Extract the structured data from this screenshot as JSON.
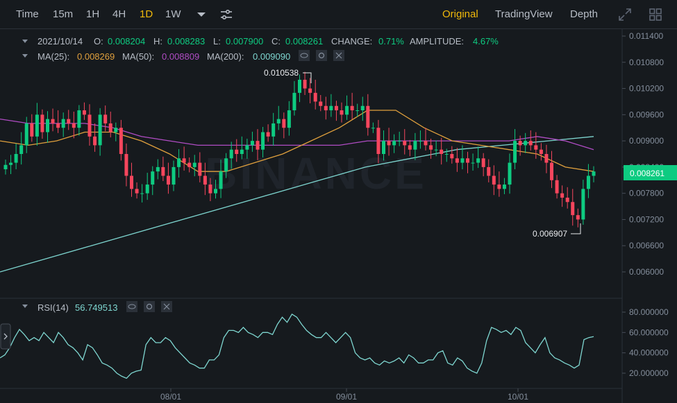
{
  "toolbar": {
    "intervals": [
      "Time",
      "15m",
      "1H",
      "4H",
      "1D",
      "1W"
    ],
    "active_interval": "1D",
    "views": [
      "Original",
      "TradingView",
      "Depth"
    ],
    "active_view": "Original",
    "more_icon": "caret-down-icon",
    "settings_icon": "sliders-icon",
    "fullscreen_icon": "expand-icon",
    "layout_icon": "grid-icon"
  },
  "info": {
    "date": "2021/10/14",
    "open_label": "O:",
    "open": "0.008204",
    "high_label": "H:",
    "high": "0.008283",
    "low_label": "L:",
    "low": "0.007900",
    "close_label": "C:",
    "close": "0.008261",
    "change_label": "CHANGE:",
    "change": "0.71%",
    "amplitude_label": "AMPLITUDE:",
    "amplitude": "4.67%"
  },
  "ma": {
    "ma25_label": "MA(25):",
    "ma25": "0.008269",
    "ma50_label": "MA(50):",
    "ma50": "0.008809",
    "ma200_label": "MA(200):",
    "ma200": "0.009090"
  },
  "rsi": {
    "label": "RSI(14)",
    "value": "56.749513"
  },
  "watermark": "BINANCE",
  "colors": {
    "up": "#0ecb81",
    "down": "#f6465d",
    "ma25": "#e0a03d",
    "ma50": "#b04cc4",
    "ma200": "#7ed6d0",
    "rsi": "#7ed6d0",
    "accent": "#f0b90b",
    "background": "#161a1e"
  },
  "chart_data": [
    {
      "type": "candlestick",
      "title": "",
      "yticks": [
        "0.011400",
        "0.010800",
        "0.010200",
        "0.009600",
        "0.009000",
        "0.008400",
        "0.007800",
        "0.007200",
        "0.006600",
        "0.006000"
      ],
      "ylim": [
        0.0055,
        0.0116
      ],
      "x_labels": [
        "08/01",
        "09/01",
        "10/01"
      ],
      "last_price": "0.008261",
      "high_annotation": "0.010538",
      "low_annotation": "0.006907",
      "series": [
        {
          "name": "Price",
          "closes": [
            0.00845,
            0.0085,
            0.0087,
            0.0089,
            0.0094,
            0.0091,
            0.0096,
            0.0092,
            0.0095,
            0.0094,
            0.0093,
            0.0095,
            0.0094,
            0.0093,
            0.0097,
            0.0096,
            0.0091,
            0.0089,
            0.0096,
            0.0094,
            0.0092,
            0.0093,
            0.0087,
            0.0082,
            0.0079,
            0.0078,
            0.0078,
            0.008,
            0.0083,
            0.0084,
            0.0082,
            0.008,
            0.0084,
            0.0086,
            0.0085,
            0.0084,
            0.0085,
            0.0082,
            0.008,
            0.0078,
            0.0079,
            0.0083,
            0.0086,
            0.0088,
            0.0087,
            0.0088,
            0.0089,
            0.009,
            0.0088,
            0.0092,
            0.0091,
            0.0094,
            0.0095,
            0.0093,
            0.0097,
            0.0101,
            0.0104,
            0.0102,
            0.0101,
            0.0099,
            0.0098,
            0.0097,
            0.0098,
            0.0097,
            0.0096,
            0.0098,
            0.0097,
            0.0097,
            0.0098,
            0.0093,
            0.0093,
            0.0087,
            0.009,
            0.0089,
            0.009,
            0.009,
            0.0089,
            0.0088,
            0.009,
            0.009,
            0.0089,
            0.0088,
            0.0088,
            0.0087,
            0.0087,
            0.0086,
            0.0085,
            0.0086,
            0.0085,
            0.0085,
            0.0086,
            0.0084,
            0.0082,
            0.008,
            0.0079,
            0.008,
            0.0085,
            0.009,
            0.0089,
            0.009,
            0.0089,
            0.0088,
            0.0087,
            0.0085,
            0.0081,
            0.0078,
            0.0077,
            0.0076,
            0.0073,
            0.0072,
            0.0079,
            0.0082,
            0.0083
          ]
        },
        {
          "name": "MA(25)",
          "values": [
            0.009,
            0.0089,
            0.009,
            0.0092,
            0.0092,
            0.009,
            0.0087,
            0.0083,
            0.0083,
            0.0085,
            0.0087,
            0.009,
            0.0093,
            0.0097,
            0.0097,
            0.0093,
            0.009,
            0.0089,
            0.0088,
            0.0087,
            0.0084,
            0.0083
          ]
        },
        {
          "name": "MA(50)",
          "values": [
            0.0095,
            0.0094,
            0.0094,
            0.0094,
            0.0093,
            0.0091,
            0.009,
            0.0089,
            0.0089,
            0.0089,
            0.0089,
            0.0089,
            0.0089,
            0.009,
            0.009,
            0.009,
            0.009,
            0.009,
            0.009,
            0.0091,
            0.009,
            0.0088
          ]
        },
        {
          "name": "MA(200)",
          "values": [
            0.006,
            0.0063,
            0.0066,
            0.0069,
            0.0072,
            0.0075,
            0.0078,
            0.0081,
            0.0084,
            0.0086,
            0.0088,
            0.0089,
            0.009,
            0.0091
          ]
        }
      ]
    },
    {
      "type": "line",
      "title": "RSI(14)",
      "yticks": [
        "80.000000",
        "60.000000",
        "40.000000",
        "20.000000"
      ],
      "ylim": [
        12,
        88
      ],
      "x_labels": [
        "08/01",
        "09/01",
        "10/01"
      ],
      "series": [
        {
          "name": "RSI(14)",
          "values": [
            35,
            38,
            45,
            55,
            63,
            58,
            52,
            55,
            52,
            60,
            55,
            50,
            60,
            55,
            48,
            45,
            40,
            33,
            48,
            45,
            38,
            30,
            28,
            25,
            20,
            17,
            15,
            20,
            22,
            23,
            48,
            55,
            50,
            50,
            55,
            52,
            45,
            40,
            35,
            30,
            28,
            25,
            25,
            33,
            33,
            38,
            55,
            62,
            62,
            60,
            65,
            60,
            58,
            55,
            60,
            60,
            58,
            68,
            75,
            70,
            78,
            75,
            68,
            62,
            58,
            55,
            55,
            60,
            55,
            50,
            55,
            60,
            55,
            40,
            35,
            33,
            35,
            30,
            28,
            32,
            30,
            32,
            35,
            30,
            38,
            35,
            30,
            30,
            33,
            33,
            40,
            42,
            30,
            28,
            35,
            32,
            25,
            22,
            20,
            30,
            52,
            65,
            63,
            60,
            62,
            58,
            65,
            62,
            50,
            45,
            40,
            48,
            55,
            40,
            35,
            33,
            30,
            28,
            25,
            28,
            53,
            55,
            56
          ]
        }
      ]
    }
  ]
}
